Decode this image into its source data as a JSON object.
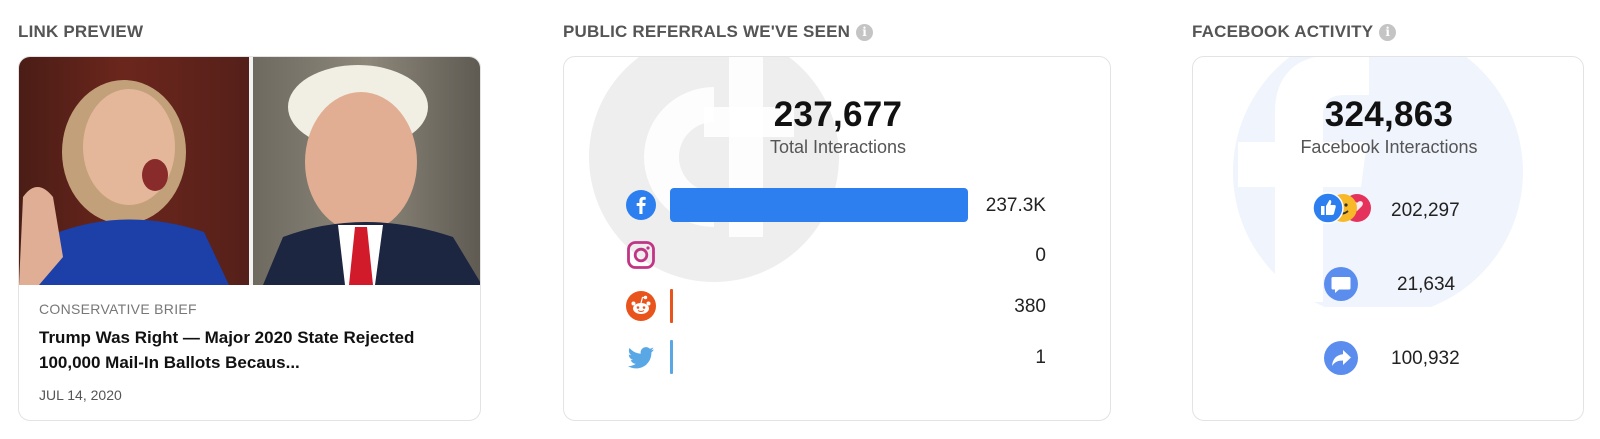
{
  "link_preview": {
    "section_label": "LINK PREVIEW",
    "source": "CONSERVATIVE BRIEF",
    "title": "Trump Was Right — Major 2020 State Rejected 100,000 Mail-In Ballots Becaus...",
    "date": "JUL 14, 2020"
  },
  "referrals": {
    "section_label": "PUBLIC REFERRALS WE'VE SEEN",
    "total": "237,677",
    "total_label": "Total Interactions",
    "rows": [
      {
        "platform": "facebook",
        "icon": "facebook-icon",
        "value_label": "237.3K",
        "value": 237300,
        "color": "#2d7ff0"
      },
      {
        "platform": "instagram",
        "icon": "instagram-icon",
        "value_label": "0",
        "value": 0,
        "color": "#c13584"
      },
      {
        "platform": "reddit",
        "icon": "reddit-icon",
        "value_label": "380",
        "value": 380,
        "color": "#e8541c"
      },
      {
        "platform": "twitter",
        "icon": "twitter-icon",
        "value_label": "1",
        "value": 1,
        "color": "#5aa7e6"
      }
    ]
  },
  "facebook": {
    "section_label": "FACEBOOK ACTIVITY",
    "total": "324,863",
    "total_label": "Facebook Interactions",
    "rows": [
      {
        "type": "reactions",
        "icon": "reactions-icon",
        "value": "202,297"
      },
      {
        "type": "comments",
        "icon": "comment-icon",
        "value": "21,634"
      },
      {
        "type": "shares",
        "icon": "share-icon",
        "value": "100,932"
      }
    ]
  },
  "colors": {
    "facebook_blue": "#2d7ff0",
    "instagram": "#c13584",
    "reddit": "#e8541c",
    "twitter": "#5aa7e6"
  }
}
